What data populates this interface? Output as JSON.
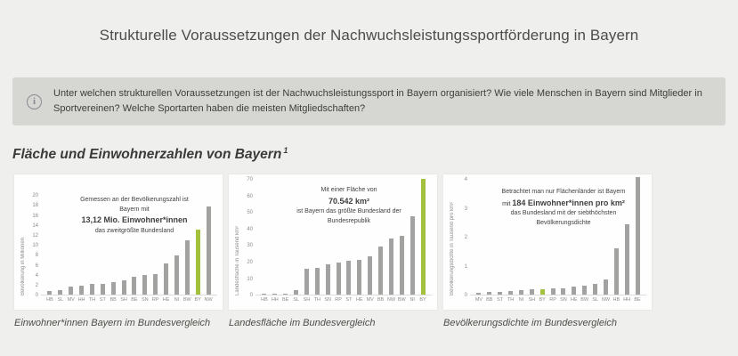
{
  "page": {
    "title": "Strukturelle Voraussetzungen der Nachwuchsleistungssportförderung in Bayern",
    "section_heading": "Fläche und Einwohnerzahlen von Bayern",
    "section_heading_footnote": "1"
  },
  "info_box": {
    "icon": "info-icon",
    "text": "Unter welchen strukturellen Voraussetzungen ist der Nachwuchsleistungssport in Bayern organisiert? Wie viele Menschen in Bayern sind Mitglieder in Sportvereinen? Welche Sportarten haben die meisten Mitgliedschaften?"
  },
  "colors": {
    "page_background": "#efefed",
    "info_box_background": "#d6d6d3",
    "card_background": "#fefefe",
    "bar_default": "#a2a2a0",
    "bar_highlight": "#a3c13d"
  },
  "chart_data": [
    {
      "type": "bar",
      "caption": "Einwohner*innen Bayern im Bundesvergleich",
      "ylabel": "Bevölkerung in Millionen",
      "ylim": [
        0,
        20
      ],
      "yticks": [
        0,
        2,
        4,
        6,
        8,
        10,
        12,
        14,
        16,
        18,
        20
      ],
      "grid": false,
      "legend": false,
      "highlight_category": "BY",
      "categories": [
        "HB",
        "SL",
        "MV",
        "HH",
        "TH",
        "ST",
        "BB",
        "SH",
        "BE",
        "SN",
        "RP",
        "HE",
        "NI",
        "BW",
        "BY",
        "NW"
      ],
      "values": [
        0.68,
        0.99,
        1.61,
        1.85,
        2.12,
        2.18,
        2.53,
        2.91,
        3.66,
        4.07,
        4.1,
        6.29,
        8.0,
        11.1,
        13.12,
        17.93
      ],
      "annotation": {
        "lines": [
          [
            {
              "text": "Gemessen an der Bevölkerungszahl ist",
              "bold": false
            }
          ],
          [
            {
              "text": "Bayern mit",
              "bold": false
            }
          ],
          [
            {
              "text": "13,12 Mio. Einwohner*innen",
              "bold": true
            }
          ],
          [
            {
              "text": "das zweitgrößte Bundesland",
              "bold": false
            }
          ]
        ]
      }
    },
    {
      "type": "bar",
      "caption": "Landesfläche im Bundesvergleich",
      "ylabel": "Landesfläche in Tausend km²",
      "ylim": [
        0,
        70
      ],
      "yticks": [
        0,
        10,
        20,
        30,
        40,
        50,
        60,
        70
      ],
      "grid": false,
      "legend": false,
      "highlight_category": "BY",
      "categories": [
        "HB",
        "HH",
        "BE",
        "SL",
        "SH",
        "TH",
        "SN",
        "RP",
        "ST",
        "HE",
        "MV",
        "BB",
        "NW",
        "BW",
        "NI",
        "BY"
      ],
      "values": [
        0.42,
        0.76,
        0.89,
        2.57,
        15.8,
        16.2,
        18.45,
        19.85,
        20.45,
        21.12,
        23.29,
        29.65,
        34.11,
        35.75,
        47.71,
        70.54
      ],
      "annotation": {
        "lines": [
          [
            {
              "text": "Mit einer Fläche von",
              "bold": false
            }
          ],
          [
            {
              "text": "70.542 km²",
              "bold": true
            }
          ],
          [
            {
              "text": "ist Bayern das größte Bundesland der",
              "bold": false
            }
          ],
          [
            {
              "text": "Bundesrepublik",
              "bold": false
            }
          ]
        ]
      }
    },
    {
      "type": "bar",
      "caption": "Bevölkerungsdichte im Bundesvergleich",
      "ylabel": "Bevölkerungsdichte  in Tausend pro km²",
      "ylim": [
        0,
        4
      ],
      "yticks": [
        0,
        1,
        2,
        3,
        4
      ],
      "grid": false,
      "legend": false,
      "highlight_category": "BY",
      "categories": [
        "MV",
        "BB",
        "ST",
        "TH",
        "NI",
        "SH",
        "BY",
        "RP",
        "SN",
        "HE",
        "BW",
        "SL",
        "NW",
        "HB",
        "HH",
        "BE"
      ],
      "values": [
        0.069,
        0.085,
        0.107,
        0.131,
        0.168,
        0.184,
        0.184,
        0.207,
        0.221,
        0.298,
        0.31,
        0.383,
        0.526,
        1.63,
        2.45,
        4.09
      ],
      "annotation": {
        "lines": [
          [
            {
              "text": "Betrachtet man nur Flächenländer ist Bayern",
              "bold": false
            }
          ],
          [
            {
              "text": "mit ",
              "bold": false
            },
            {
              "text": "184 Einwohner*innen pro km²",
              "bold": true
            }
          ],
          [
            {
              "text": "das Bundesland mit der siebthöchsten",
              "bold": false
            }
          ],
          [
            {
              "text": "Bevölkerungsdichte",
              "bold": false
            }
          ]
        ]
      }
    }
  ]
}
